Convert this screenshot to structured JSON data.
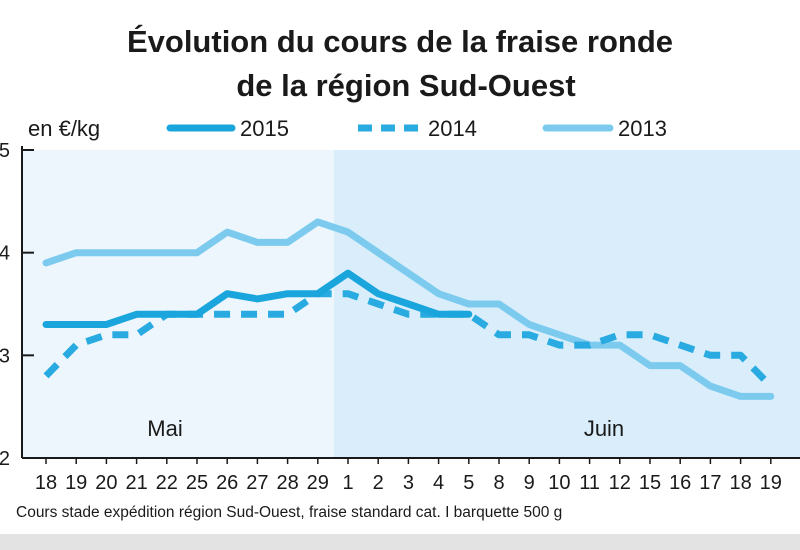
{
  "chart_data": {
    "type": "line",
    "title_lines": [
      "Évolution du cours de la fraise ronde",
      "de la région Sud-Ouest"
    ],
    "ylabel": "en €/kg",
    "ylim": [
      2,
      5
    ],
    "yticks": [
      "2",
      "3",
      "4",
      "5"
    ],
    "categories": [
      "18",
      "19",
      "20",
      "21",
      "22",
      "25",
      "26",
      "27",
      "28",
      "29",
      "1",
      "2",
      "3",
      "4",
      "5",
      "8",
      "9",
      "10",
      "11",
      "12",
      "15",
      "16",
      "17",
      "18",
      "19"
    ],
    "months": [
      {
        "label": "Mai",
        "from_index": 0,
        "to_index": 9
      },
      {
        "label": "Juin",
        "from_index": 10,
        "to_index": 24
      }
    ],
    "grid": false,
    "legend_position": "top",
    "series": [
      {
        "name": "2015",
        "style": "solid",
        "color": "#1aa6dc",
        "values": [
          3.3,
          3.3,
          3.3,
          3.4,
          3.4,
          3.4,
          3.6,
          3.55,
          3.6,
          3.6,
          3.8,
          3.6,
          3.5,
          3.4,
          3.4,
          null,
          null,
          null,
          null,
          null,
          null,
          null,
          null,
          null,
          null
        ]
      },
      {
        "name": "2014",
        "style": "dashed",
        "color": "#29abe2",
        "values": [
          2.8,
          3.1,
          3.2,
          3.2,
          3.4,
          3.4,
          3.4,
          3.4,
          3.4,
          3.6,
          3.6,
          3.5,
          3.4,
          3.4,
          3.4,
          3.2,
          3.2,
          3.1,
          3.1,
          3.2,
          3.2,
          3.1,
          3.0,
          3.0,
          2.7
        ]
      },
      {
        "name": "2013",
        "style": "solid",
        "color": "#7ccbef",
        "values": [
          3.9,
          4.0,
          4.0,
          4.0,
          4.0,
          4.0,
          4.2,
          4.1,
          4.1,
          4.3,
          4.2,
          4.0,
          3.8,
          3.6,
          3.5,
          3.5,
          3.3,
          3.2,
          3.1,
          3.1,
          2.9,
          2.9,
          2.7,
          2.6,
          2.6
        ]
      }
    ],
    "source_note": "Cours stade expédition région Sud-Ouest, fraise standard cat. I barquette 500 g"
  },
  "colors": {
    "may_band": "#ecf6fc",
    "june_band": "#d9eefa",
    "axis": "#1a1a1a",
    "bottom_strip": "#e3e3e3"
  }
}
